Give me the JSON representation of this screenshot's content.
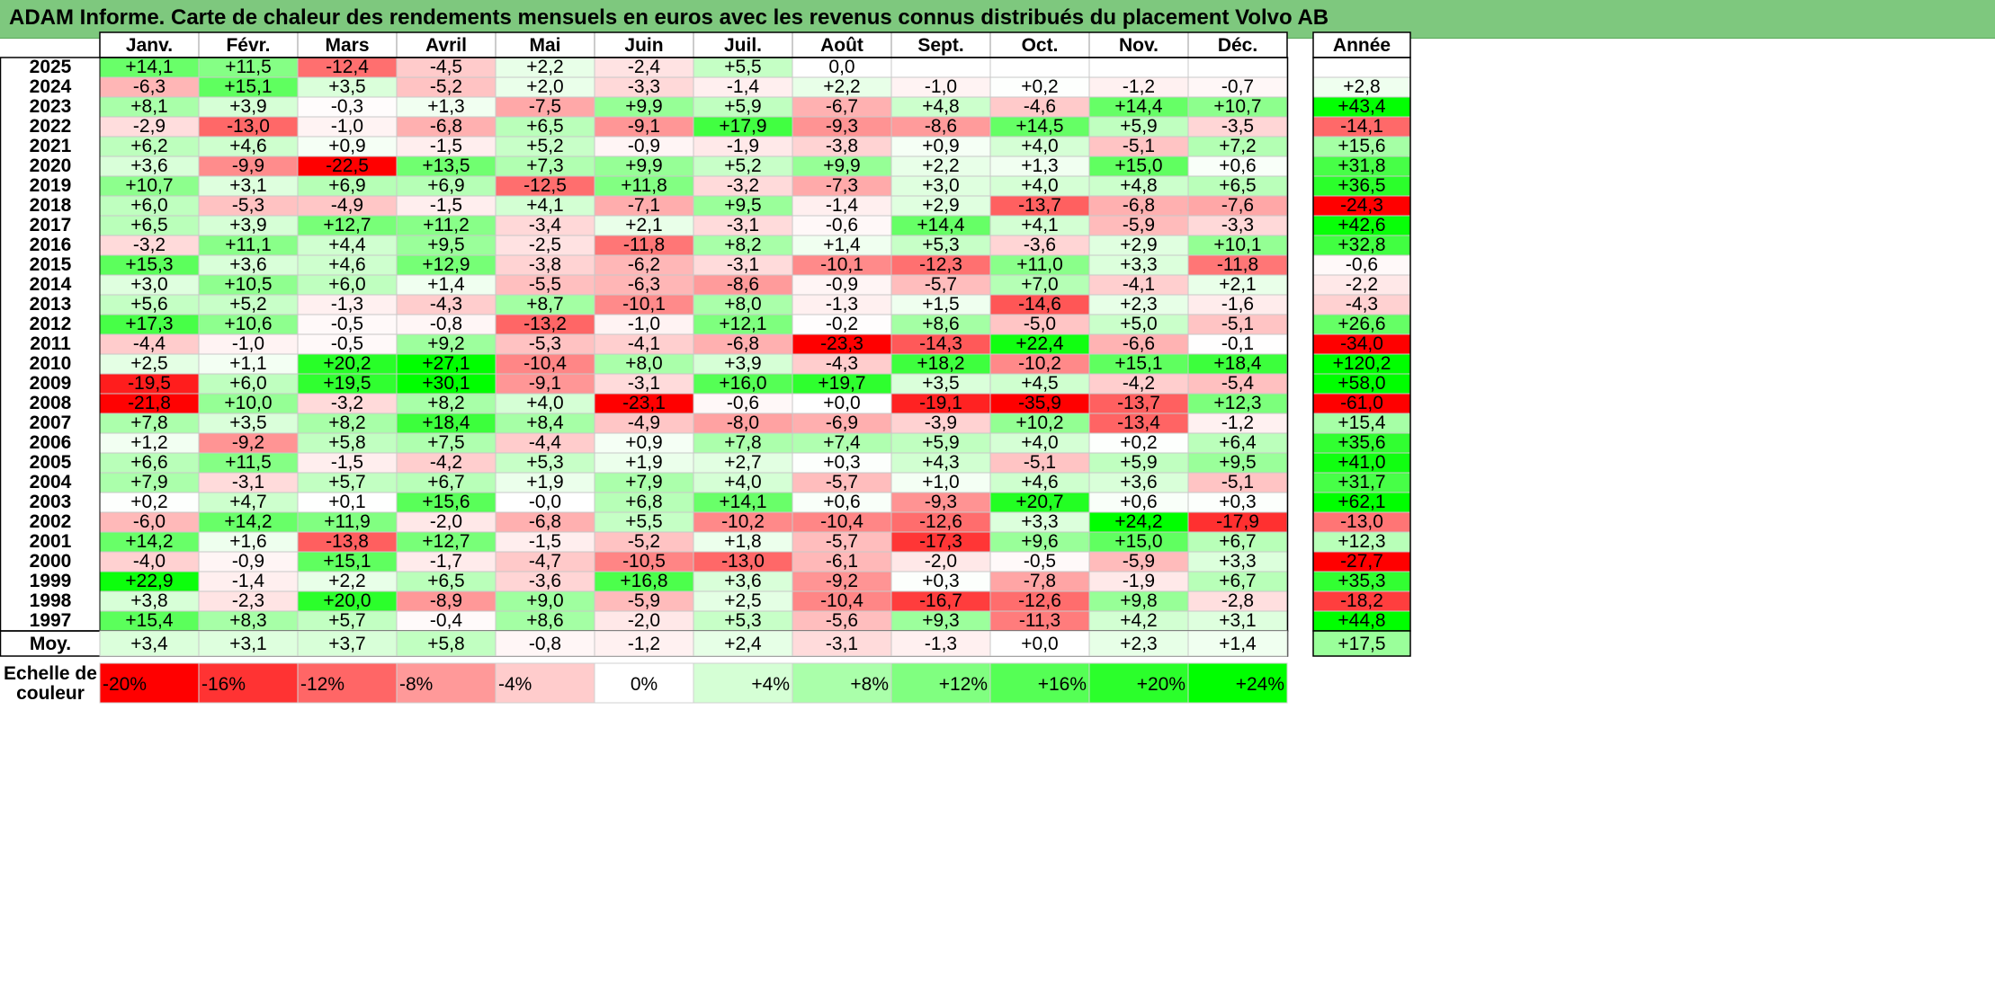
{
  "title": "ADAM Informe. Carte de chaleur des rendements mensuels en euros avec les revenus connus distribués du placement Volvo AB",
  "chart_data": {
    "type": "heatmap",
    "title": "ADAM Informe. Carte de chaleur des rendements mensuels en euros avec les revenus connus distribués du placement Volvo AB",
    "columns": [
      "Janv.",
      "Févr.",
      "Mars",
      "Avril",
      "Mai",
      "Juin",
      "Juil.",
      "Août",
      "Sept.",
      "Oct.",
      "Nov.",
      "Déc."
    ],
    "annual_label": "Année",
    "rows": [
      {
        "year": "2025",
        "months": [
          "+14,1",
          "+11,5",
          "-12,4",
          "-4,5",
          "+2,2",
          "-2,4",
          "+5,5",
          "0,0",
          "",
          "",
          "",
          ""
        ],
        "annual": ""
      },
      {
        "year": "2024",
        "months": [
          "-6,3",
          "+15,1",
          "+3,5",
          "-5,2",
          "+2,0",
          "-3,3",
          "-1,4",
          "+2,2",
          "-1,0",
          "+0,2",
          "-1,2",
          "-0,7"
        ],
        "annual": "+2,8"
      },
      {
        "year": "2023",
        "months": [
          "+8,1",
          "+3,9",
          "-0,3",
          "+1,3",
          "-7,5",
          "+9,9",
          "+5,9",
          "-6,7",
          "+4,8",
          "-4,6",
          "+14,4",
          "+10,7"
        ],
        "annual": "+43,4"
      },
      {
        "year": "2022",
        "months": [
          "-2,9",
          "-13,0",
          "-1,0",
          "-6,8",
          "+6,5",
          "-9,1",
          "+17,9",
          "-9,3",
          "-8,6",
          "+14,5",
          "+5,9",
          "-3,5"
        ],
        "annual": "-14,1"
      },
      {
        "year": "2021",
        "months": [
          "+6,2",
          "+4,6",
          "+0,9",
          "-1,5",
          "+5,2",
          "-0,9",
          "-1,9",
          "-3,8",
          "+0,9",
          "+4,0",
          "-5,1",
          "+7,2"
        ],
        "annual": "+15,6"
      },
      {
        "year": "2020",
        "months": [
          "+3,6",
          "-9,9",
          "-22,5",
          "+13,5",
          "+7,3",
          "+9,9",
          "+5,2",
          "+9,9",
          "+2,2",
          "+1,3",
          "+15,0",
          "+0,6"
        ],
        "annual": "+31,8"
      },
      {
        "year": "2019",
        "months": [
          "+10,7",
          "+3,1",
          "+6,9",
          "+6,9",
          "-12,5",
          "+11,8",
          "-3,2",
          "-7,3",
          "+3,0",
          "+4,0",
          "+4,8",
          "+6,5"
        ],
        "annual": "+36,5"
      },
      {
        "year": "2018",
        "months": [
          "+6,0",
          "-5,3",
          "-4,9",
          "-1,5",
          "+4,1",
          "-7,1",
          "+9,5",
          "-1,4",
          "+2,9",
          "-13,7",
          "-6,8",
          "-7,6"
        ],
        "annual": "-24,3"
      },
      {
        "year": "2017",
        "months": [
          "+6,5",
          "+3,9",
          "+12,7",
          "+11,2",
          "-3,4",
          "+2,1",
          "-3,1",
          "-0,6",
          "+14,4",
          "+4,1",
          "-5,9",
          "-3,3"
        ],
        "annual": "+42,6"
      },
      {
        "year": "2016",
        "months": [
          "-3,2",
          "+11,1",
          "+4,4",
          "+9,5",
          "-2,5",
          "-11,8",
          "+8,2",
          "+1,4",
          "+5,3",
          "-3,6",
          "+2,9",
          "+10,1"
        ],
        "annual": "+32,8"
      },
      {
        "year": "2015",
        "months": [
          "+15,3",
          "+3,6",
          "+4,6",
          "+12,9",
          "-3,8",
          "-6,2",
          "-3,1",
          "-10,1",
          "-12,3",
          "+11,0",
          "+3,3",
          "-11,8"
        ],
        "annual": "-0,6"
      },
      {
        "year": "2014",
        "months": [
          "+3,0",
          "+10,5",
          "+6,0",
          "+1,4",
          "-5,5",
          "-6,3",
          "-8,6",
          "-0,9",
          "-5,7",
          "+7,0",
          "-4,1",
          "+2,1"
        ],
        "annual": "-2,2"
      },
      {
        "year": "2013",
        "months": [
          "+5,6",
          "+5,2",
          "-1,3",
          "-4,3",
          "+8,7",
          "-10,1",
          "+8,0",
          "-1,3",
          "+1,5",
          "-14,6",
          "+2,3",
          "-1,6"
        ],
        "annual": "-4,3"
      },
      {
        "year": "2012",
        "months": [
          "+17,3",
          "+10,6",
          "-0,5",
          "-0,8",
          "-13,2",
          "-1,0",
          "+12,1",
          "-0,2",
          "+8,6",
          "-5,0",
          "+5,0",
          "-5,1"
        ],
        "annual": "+26,6"
      },
      {
        "year": "2011",
        "months": [
          "-4,4",
          "-1,0",
          "-0,5",
          "+9,2",
          "-5,3",
          "-4,1",
          "-6,8",
          "-23,3",
          "-14,3",
          "+22,4",
          "-6,6",
          "-0,1"
        ],
        "annual": "-34,0"
      },
      {
        "year": "2010",
        "months": [
          "+2,5",
          "+1,1",
          "+20,2",
          "+27,1",
          "-10,4",
          "+8,0",
          "+3,9",
          "-4,3",
          "+18,2",
          "-10,2",
          "+15,1",
          "+18,4"
        ],
        "annual": "+120,2"
      },
      {
        "year": "2009",
        "months": [
          "-19,5",
          "+6,0",
          "+19,5",
          "+30,1",
          "-9,1",
          "-3,1",
          "+16,0",
          "+19,7",
          "+3,5",
          "+4,5",
          "-4,2",
          "-5,4"
        ],
        "annual": "+58,0"
      },
      {
        "year": "2008",
        "months": [
          "-21,8",
          "+10,0",
          "-3,2",
          "+8,2",
          "+4,0",
          "-23,1",
          "-0,6",
          "+0,0",
          "-19,1",
          "-35,9",
          "-13,7",
          "+12,3"
        ],
        "annual": "-61,0"
      },
      {
        "year": "2007",
        "months": [
          "+7,8",
          "+3,5",
          "+8,2",
          "+18,4",
          "+8,4",
          "-4,9",
          "-8,0",
          "-6,9",
          "-3,9",
          "+10,2",
          "-13,4",
          "-1,2"
        ],
        "annual": "+15,4"
      },
      {
        "year": "2006",
        "months": [
          "+1,2",
          "-9,2",
          "+5,8",
          "+7,5",
          "-4,4",
          "+0,9",
          "+7,8",
          "+7,4",
          "+5,9",
          "+4,0",
          "+0,2",
          "+6,4"
        ],
        "annual": "+35,6"
      },
      {
        "year": "2005",
        "months": [
          "+6,6",
          "+11,5",
          "-1,5",
          "-4,2",
          "+5,3",
          "+1,9",
          "+2,7",
          "+0,3",
          "+4,3",
          "-5,1",
          "+5,9",
          "+9,5"
        ],
        "annual": "+41,0"
      },
      {
        "year": "2004",
        "months": [
          "+7,9",
          "-3,1",
          "+5,7",
          "+6,7",
          "+1,9",
          "+7,9",
          "+4,0",
          "-5,7",
          "+1,0",
          "+4,6",
          "+3,6",
          "-5,1"
        ],
        "annual": "+31,7"
      },
      {
        "year": "2003",
        "months": [
          "+0,2",
          "+4,7",
          "+0,1",
          "+15,6",
          "-0,0",
          "+6,8",
          "+14,1",
          "+0,6",
          "-9,3",
          "+20,7",
          "+0,6",
          "+0,3"
        ],
        "annual": "+62,1"
      },
      {
        "year": "2002",
        "months": [
          "-6,0",
          "+14,2",
          "+11,9",
          "-2,0",
          "-6,8",
          "+5,5",
          "-10,2",
          "-10,4",
          "-12,6",
          "+3,3",
          "+24,2",
          "-17,9"
        ],
        "annual": "-13,0"
      },
      {
        "year": "2001",
        "months": [
          "+14,2",
          "+1,6",
          "-13,8",
          "+12,7",
          "-1,5",
          "-5,2",
          "+1,8",
          "-5,7",
          "-17,3",
          "+9,6",
          "+15,0",
          "+6,7"
        ],
        "annual": "+12,3"
      },
      {
        "year": "2000",
        "months": [
          "-4,0",
          "-0,9",
          "+15,1",
          "-1,7",
          "-4,7",
          "-10,5",
          "-13,0",
          "-6,1",
          "-2,0",
          "-0,5",
          "-5,9",
          "+3,3"
        ],
        "annual": "-27,7"
      },
      {
        "year": "1999",
        "months": [
          "+22,9",
          "-1,4",
          "+2,2",
          "+6,5",
          "-3,6",
          "+16,8",
          "+3,6",
          "-9,2",
          "+0,3",
          "-7,8",
          "-1,9",
          "+6,7"
        ],
        "annual": "+35,3"
      },
      {
        "year": "1998",
        "months": [
          "+3,8",
          "-2,3",
          "+20,0",
          "-8,9",
          "+9,0",
          "-5,9",
          "+2,5",
          "-10,4",
          "-16,7",
          "-12,6",
          "+9,8",
          "-2,8"
        ],
        "annual": "-18,2"
      },
      {
        "year": "1997",
        "months": [
          "+15,4",
          "+8,3",
          "+5,7",
          "-0,4",
          "+8,6",
          "-2,0",
          "+5,3",
          "-5,6",
          "+9,3",
          "-11,3",
          "+4,2",
          "+3,1"
        ],
        "annual": "+44,8"
      }
    ],
    "average": {
      "label": "Moy.",
      "months": [
        "+3,4",
        "+3,1",
        "+3,7",
        "+5,8",
        "-0,8",
        "-1,2",
        "+2,4",
        "-3,1",
        "-1,3",
        "+0,0",
        "+2,3",
        "+1,4"
      ],
      "annual": "+17,5"
    },
    "scale": {
      "label_lines": [
        "Echelle de",
        "couleur"
      ],
      "stops": [
        {
          "label": "-20%",
          "value": -20
        },
        {
          "label": "-16%",
          "value": -16
        },
        {
          "label": "-12%",
          "value": -12
        },
        {
          "label": "-8%",
          "value": -8
        },
        {
          "label": "-4%",
          "value": -4
        },
        {
          "label": "0%",
          "value": 0
        },
        {
          "label": "+4%",
          "value": 4
        },
        {
          "label": "+8%",
          "value": 8
        },
        {
          "label": "+12%",
          "value": 12
        },
        {
          "label": "+16%",
          "value": 16
        },
        {
          "label": "+20%",
          "value": 20
        },
        {
          "label": "+24%",
          "value": 24
        }
      ]
    },
    "colors": {
      "negative": "#ff0000",
      "neutral": "#ffffff",
      "positive": "#00ff00",
      "title_bar": "#7ec87e"
    }
  }
}
